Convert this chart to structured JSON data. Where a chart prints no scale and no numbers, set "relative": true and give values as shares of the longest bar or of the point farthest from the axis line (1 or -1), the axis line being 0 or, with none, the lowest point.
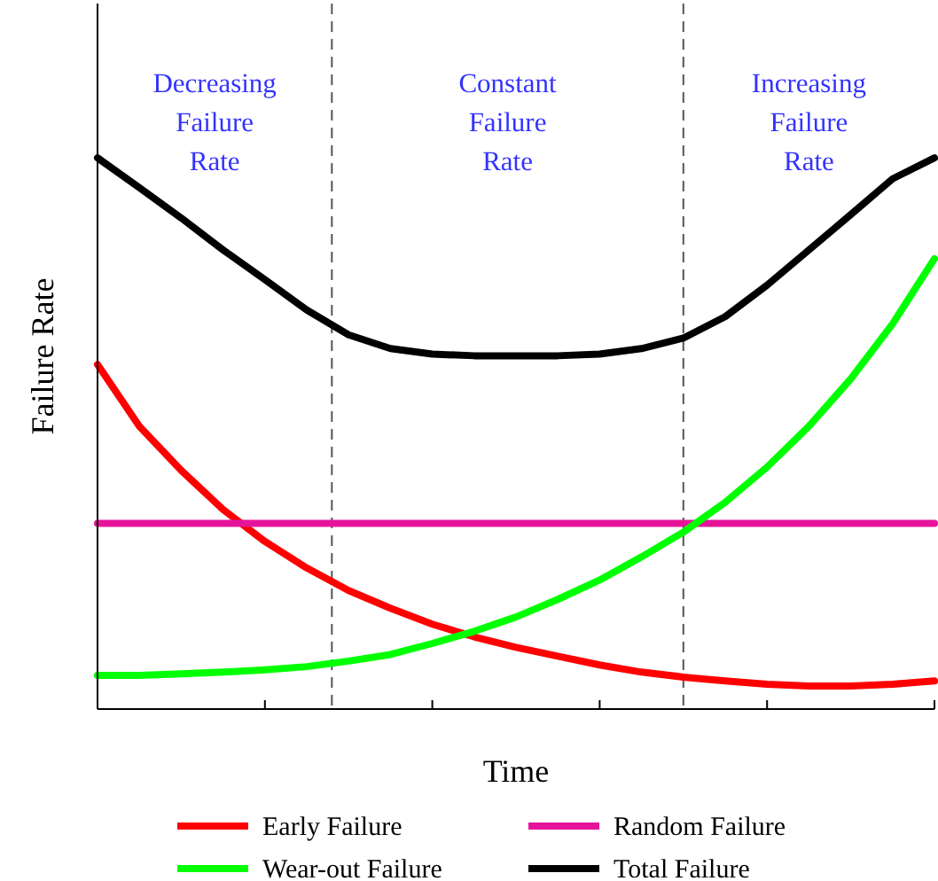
{
  "chart_data": {
    "type": "line",
    "relative": true,
    "xlabel": "Time",
    "ylabel": "Failure Rate",
    "legend": "bottom",
    "marker": "none",
    "line_style": "solid",
    "categories": [
      null,
      null,
      null,
      null,
      null,
      null,
      null,
      null,
      null,
      null,
      null,
      null,
      null,
      null,
      null,
      null,
      null,
      null,
      null,
      null,
      null
    ],
    "annotations": [
      "Decreasing\nFailure\nRate",
      "Constant\nFailure\nRate",
      "Increasing\nFailure\nRate"
    ],
    "series": [
      {
        "name": "Early Failure",
        "color": "#ff0000",
        "values": [
          0.625,
          0.513,
          0.433,
          0.362,
          0.304,
          0.256,
          0.215,
          0.183,
          0.154,
          0.131,
          0.112,
          0.096,
          0.08,
          0.067,
          0.058,
          0.051,
          0.045,
          0.042,
          0.042,
          0.045,
          0.051
        ]
      },
      {
        "name": "Random Failure",
        "color": "#e6149b",
        "values": [
          0.337,
          0.337,
          0.337,
          0.337,
          0.337,
          0.337,
          0.337,
          0.337,
          0.337,
          0.337,
          0.337,
          0.337,
          0.337,
          0.337,
          0.337,
          0.337,
          0.337,
          0.337,
          0.337,
          0.337,
          0.337
        ]
      },
      {
        "name": "Wear-out Failure",
        "color": "#00ff00",
        "values": [
          0.061,
          0.061,
          0.064,
          0.067,
          0.071,
          0.077,
          0.087,
          0.099,
          0.119,
          0.141,
          0.167,
          0.199,
          0.234,
          0.276,
          0.321,
          0.375,
          0.439,
          0.513,
          0.599,
          0.699,
          0.817
        ]
      },
      {
        "name": "Total Failure",
        "color": "#000000",
        "values": [
          1,
          0.946,
          0.891,
          0.833,
          0.779,
          0.724,
          0.679,
          0.654,
          0.644,
          0.641,
          0.641,
          0.641,
          0.644,
          0.654,
          0.673,
          0.712,
          0.769,
          0.833,
          0.897,
          0.962,
          1
        ]
      }
    ]
  }
}
